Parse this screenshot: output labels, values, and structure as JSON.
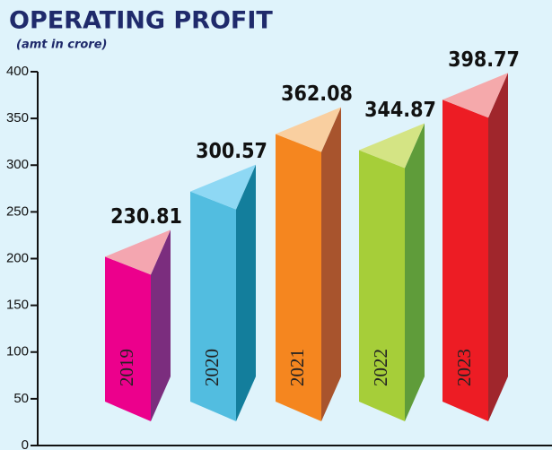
{
  "chart_data": {
    "type": "bar3d",
    "title": "OPERATING PROFIT",
    "subtitle": "(amt in crore)",
    "categories": [
      "2019",
      "2020",
      "2021",
      "2022",
      "2023"
    ],
    "values": [
      230.81,
      300.57,
      362.08,
      344.87,
      398.77
    ],
    "colors": [
      [
        "#ec008c",
        "#7b2d7e",
        "#f4a6b0"
      ],
      [
        "#52bde0",
        "#137e9c",
        "#8ed8f4"
      ],
      [
        "#f5861f",
        "#a8542d",
        "#f9cfa0"
      ],
      [
        "#a6ce39",
        "#5f9c3a",
        "#d4e484"
      ],
      [
        "#ed1c24",
        "#a0262c",
        "#f5a9ab"
      ]
    ],
    "ylim": [
      0,
      400
    ],
    "yticks": [
      0,
      50,
      100,
      150,
      200,
      250,
      300,
      350,
      400
    ]
  }
}
